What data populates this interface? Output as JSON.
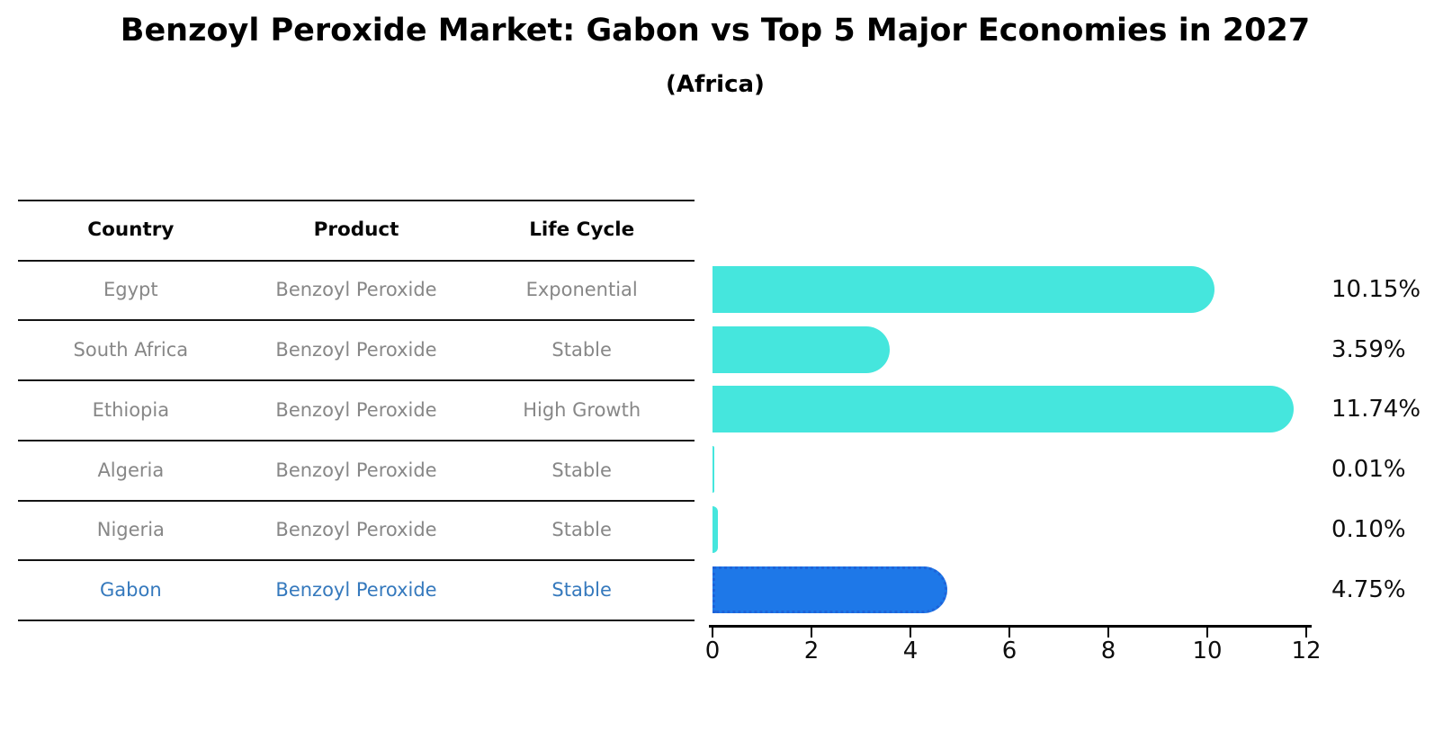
{
  "chart_data": {
    "type": "bar",
    "orientation": "horizontal",
    "title": "Benzoyl Peroxide Market: Gabon vs Top 5 Major Economies in 2027",
    "subtitle": "(Africa)",
    "categories": [
      "Egypt",
      "South Africa",
      "Ethiopia",
      "Algeria",
      "Nigeria",
      "Gabon"
    ],
    "values": [
      10.15,
      3.59,
      11.74,
      0.01,
      0.1,
      4.75
    ],
    "value_labels": [
      "10.15%",
      "3.59%",
      "11.74%",
      "0.01%",
      "0.10%",
      "4.75%"
    ],
    "xticks": [
      0,
      2,
      4,
      6,
      8,
      10,
      12
    ],
    "xlim": [
      0,
      12
    ],
    "grid": false,
    "legend": null,
    "bar_color": "#45E6DD",
    "highlight_index": 5,
    "highlight_bar_color": "#1E78E8",
    "highlight_edge_color": "#1E63D9"
  },
  "table": {
    "columns": [
      "Country",
      "Product",
      "Life Cycle"
    ],
    "rows": [
      {
        "country": "Egypt",
        "product": "Benzoyl Peroxide",
        "life_cycle": "Exponential",
        "highlight": false
      },
      {
        "country": "South Africa",
        "product": "Benzoyl Peroxide",
        "life_cycle": "Stable",
        "highlight": false
      },
      {
        "country": "Ethiopia",
        "product": "Benzoyl Peroxide",
        "life_cycle": "High Growth",
        "highlight": false
      },
      {
        "country": "Algeria",
        "product": "Benzoyl Peroxide",
        "life_cycle": "Stable",
        "highlight": false
      },
      {
        "country": "Nigeria",
        "product": "Benzoyl Peroxide",
        "life_cycle": "Stable",
        "highlight": false
      },
      {
        "country": "Gabon",
        "product": "Benzoyl Peroxide",
        "life_cycle": "Stable",
        "highlight": true
      }
    ],
    "text_color": "#878787",
    "highlight_text_color": "#3579BD",
    "header_text_color": "#060606"
  }
}
